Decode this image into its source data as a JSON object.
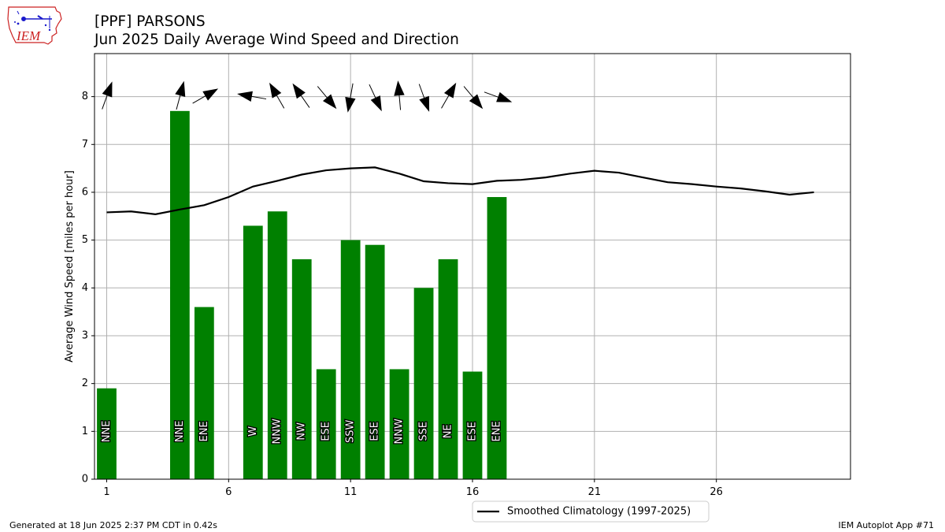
{
  "logo": {
    "text": "IEM"
  },
  "header": {
    "title": "[PPF] PARSONS",
    "subtitle": "Jun 2025 Daily Average Wind Speed and Direction"
  },
  "footer": {
    "left": "Generated at 18 Jun 2025 2:37 PM CDT in 0.42s",
    "right": "IEM Autoplot App #71"
  },
  "colors": {
    "bar": "#008000",
    "climo_line": "#000000",
    "grid": "#b0b0b0",
    "logo_red": "#cc2222",
    "logo_blue": "#1a1acc"
  },
  "chart_data": {
    "type": "bar",
    "ylabel": "Average Wind Speed [miles per hour]",
    "xlim": [
      0.5,
      31.5
    ],
    "ylim": [
      0,
      8.9
    ],
    "xticks": [
      1,
      6,
      11,
      16,
      21,
      26
    ],
    "yticks": [
      0,
      1,
      2,
      3,
      4,
      5,
      6,
      7,
      8
    ],
    "grid": true,
    "legend": {
      "placement": "bottom-center",
      "entries": [
        "Smoothed Climatology (1997-2025)"
      ]
    },
    "bars": [
      {
        "day": 1,
        "value": 1.9,
        "dir": "NNE"
      },
      {
        "day": 4,
        "value": 7.7,
        "dir": "NNE"
      },
      {
        "day": 5,
        "value": 3.6,
        "dir": "ENE"
      },
      {
        "day": 7,
        "value": 5.3,
        "dir": "W"
      },
      {
        "day": 8,
        "value": 5.6,
        "dir": "NNW"
      },
      {
        "day": 9,
        "value": 4.6,
        "dir": "NW"
      },
      {
        "day": 10,
        "value": 2.3,
        "dir": "ESE"
      },
      {
        "day": 11,
        "value": 5.0,
        "dir": "SSW"
      },
      {
        "day": 12,
        "value": 4.9,
        "dir": "ESE"
      },
      {
        "day": 13,
        "value": 2.3,
        "dir": "NNW"
      },
      {
        "day": 14,
        "value": 4.0,
        "dir": "SSE"
      },
      {
        "day": 15,
        "value": 4.6,
        "dir": "NE"
      },
      {
        "day": 16,
        "value": 2.25,
        "dir": "ESE"
      },
      {
        "day": 17,
        "value": 5.9,
        "dir": "ENE"
      }
    ],
    "climatology": {
      "name": "Smoothed Climatology (1997-2025)",
      "x": [
        1,
        2,
        3,
        4,
        5,
        6,
        7,
        8,
        9,
        10,
        11,
        12,
        13,
        14,
        15,
        16,
        17,
        18,
        19,
        20,
        21,
        22,
        23,
        24,
        25,
        26,
        27,
        28,
        29,
        30
      ],
      "y": [
        5.58,
        5.6,
        5.54,
        5.64,
        5.73,
        5.9,
        6.12,
        6.24,
        6.37,
        6.46,
        6.5,
        6.52,
        6.39,
        6.23,
        6.19,
        6.17,
        6.24,
        6.26,
        6.31,
        6.39,
        6.45,
        6.41,
        6.31,
        6.21,
        6.17,
        6.12,
        6.08,
        6.02,
        5.95,
        6.0
      ]
    },
    "arrows": [
      {
        "day": 1,
        "bearing": 200
      },
      {
        "day": 4,
        "bearing": 195
      },
      {
        "day": 5,
        "bearing": 240
      },
      {
        "day": 7,
        "bearing": 100
      },
      {
        "day": 8,
        "bearing": 150
      },
      {
        "day": 9,
        "bearing": 145
      },
      {
        "day": 10,
        "bearing": 320
      },
      {
        "day": 11,
        "bearing": 10
      },
      {
        "day": 12,
        "bearing": 335
      },
      {
        "day": 13,
        "bearing": 175
      },
      {
        "day": 14,
        "bearing": 340
      },
      {
        "day": 15,
        "bearing": 210
      },
      {
        "day": 16,
        "bearing": 320
      },
      {
        "day": 17,
        "bearing": 290
      }
    ]
  }
}
